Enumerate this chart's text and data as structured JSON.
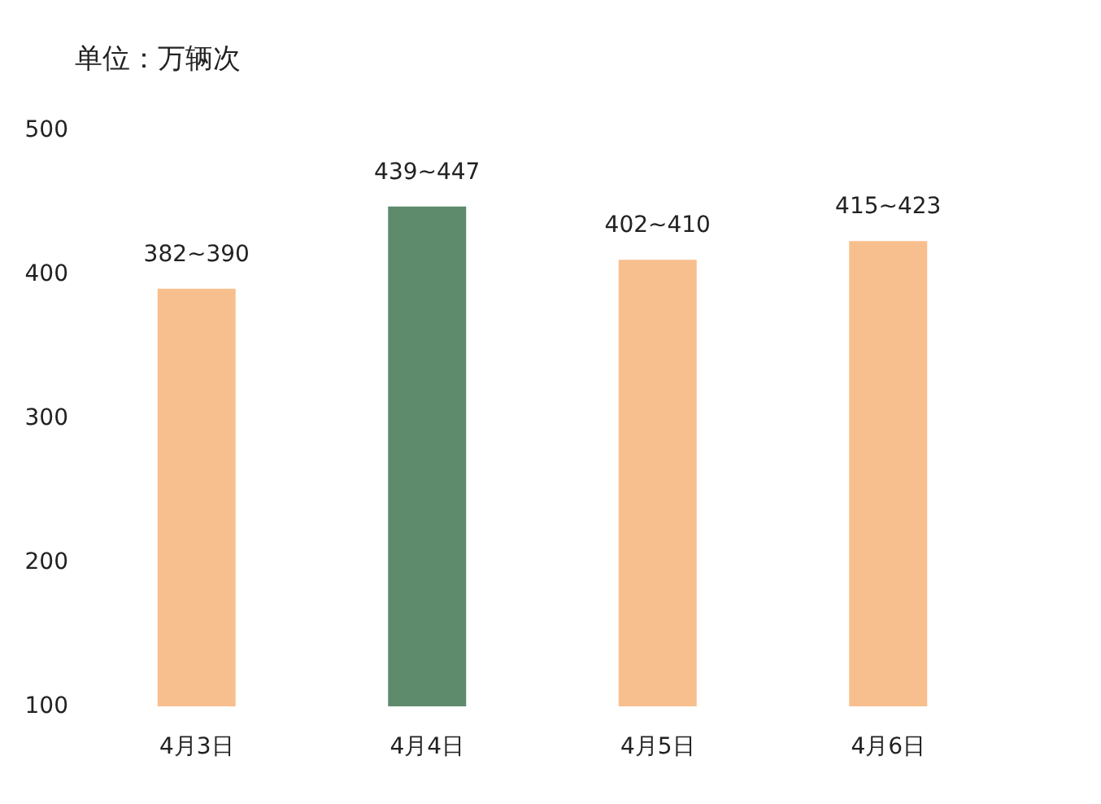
{
  "chart_data": {
    "type": "bar",
    "ylabel": "单位：万辆次",
    "categories": [
      "4月3日",
      "4月4日",
      "4月5日",
      "4月6日"
    ],
    "values": [
      390,
      447,
      410,
      423
    ],
    "colors": [
      "#f8bf8e",
      "#5f8b6d",
      "#f8bf8e",
      "#f8bf8e"
    ],
    "value_labels": [
      "382~390",
      "439~447",
      "402~410",
      "415~423"
    ],
    "ylim": [
      100,
      500
    ],
    "yticks": [
      100,
      200,
      300,
      400,
      500
    ],
    "grid": false
  }
}
